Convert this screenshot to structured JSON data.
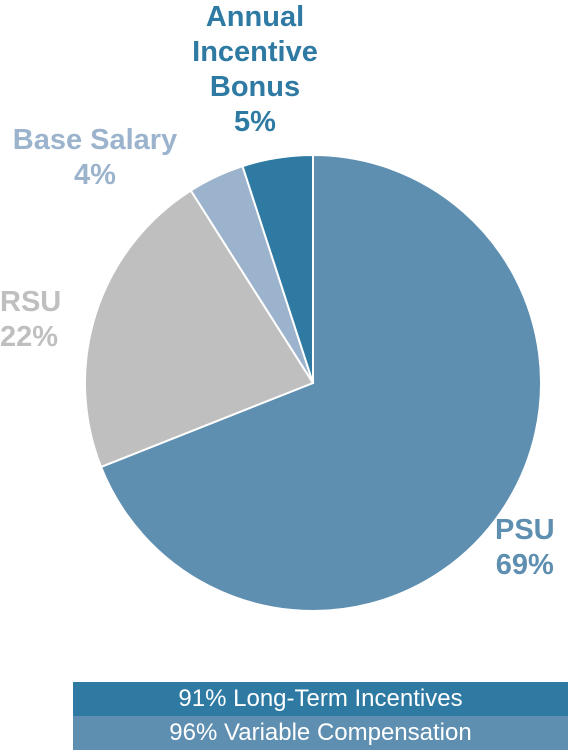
{
  "chart_data": {
    "type": "pie",
    "title": "",
    "slices": [
      {
        "key": "psu",
        "label": "PSU",
        "value": 69,
        "value_label": "69%",
        "color": "#5e8fb1"
      },
      {
        "key": "rsu",
        "label": "RSU",
        "value": 22,
        "value_label": "22%",
        "color": "#bfbfbf"
      },
      {
        "key": "base",
        "label": "Base Salary",
        "value": 4,
        "value_label": "4%",
        "color": "#9bb3cc"
      },
      {
        "key": "aib",
        "label": "Annual\nIncentive\nBonus",
        "value": 5,
        "value_label": "5%",
        "color": "#2e7aa3"
      }
    ],
    "start_angle_deg": 0,
    "direction": "clockwise"
  },
  "labels": {
    "aib": {
      "name_lines": [
        "Annual",
        "Incentive",
        "Bonus"
      ],
      "pct": "5%",
      "color": "#2e7aa3"
    },
    "base": {
      "name_lines": [
        "Base Salary"
      ],
      "pct": "4%",
      "color": "#9bb3cc"
    },
    "rsu": {
      "name_lines": [
        "RSU"
      ],
      "pct": "22%",
      "color": "#bfbfbf"
    },
    "psu": {
      "name_lines": [
        "PSU"
      ],
      "pct": "69%",
      "color": "#5e8fb1"
    }
  },
  "footer": {
    "line1": "91% Long-Term Incentives",
    "line2": "96% Variable Compensation",
    "line1_color": "#2e7aa3",
    "line2_color": "#5e8fb1"
  }
}
